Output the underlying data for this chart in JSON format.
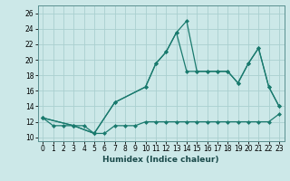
{
  "xlabel": "Humidex (Indice chaleur)",
  "bg_color": "#cce8e8",
  "line_color": "#1a7a6e",
  "grid_color": "#aacfcf",
  "xlim": [
    -0.5,
    23.5
  ],
  "ylim": [
    9.5,
    27.0
  ],
  "xticks": [
    0,
    1,
    2,
    3,
    4,
    5,
    6,
    7,
    8,
    9,
    10,
    11,
    12,
    13,
    14,
    15,
    16,
    17,
    18,
    19,
    20,
    21,
    22,
    23
  ],
  "yticks": [
    10,
    12,
    14,
    16,
    18,
    20,
    22,
    24,
    26
  ],
  "line1_x": [
    0,
    1,
    2,
    3,
    4,
    5,
    6,
    7,
    8,
    9,
    10,
    11,
    12,
    13,
    14,
    15,
    16,
    17,
    18,
    19,
    20,
    21,
    22,
    23
  ],
  "line1_y": [
    12.5,
    11.5,
    11.5,
    11.5,
    11.5,
    10.5,
    10.5,
    11.5,
    11.5,
    11.5,
    12,
    12,
    12,
    12,
    12,
    12,
    12,
    12,
    12,
    12,
    12,
    12,
    12,
    13
  ],
  "line2_x": [
    0,
    3,
    5,
    7,
    10,
    11,
    12,
    13,
    14,
    15,
    16,
    17,
    18,
    19,
    20,
    21,
    22,
    23
  ],
  "line2_y": [
    12.5,
    11.5,
    10.5,
    14.5,
    16.5,
    19.5,
    21.0,
    23.5,
    25.0,
    18.5,
    18.5,
    18.5,
    18.5,
    17.0,
    19.5,
    21.5,
    16.5,
    14.0
  ],
  "line3_x": [
    0,
    3,
    5,
    7,
    10,
    11,
    12,
    13,
    14,
    15,
    16,
    17,
    18,
    19,
    20,
    21,
    22,
    23
  ],
  "line3_y": [
    12.5,
    11.5,
    10.5,
    14.5,
    16.5,
    19.5,
    21.0,
    23.5,
    18.5,
    18.5,
    18.5,
    18.5,
    18.5,
    17.0,
    19.5,
    21.5,
    16.5,
    14.0
  ]
}
